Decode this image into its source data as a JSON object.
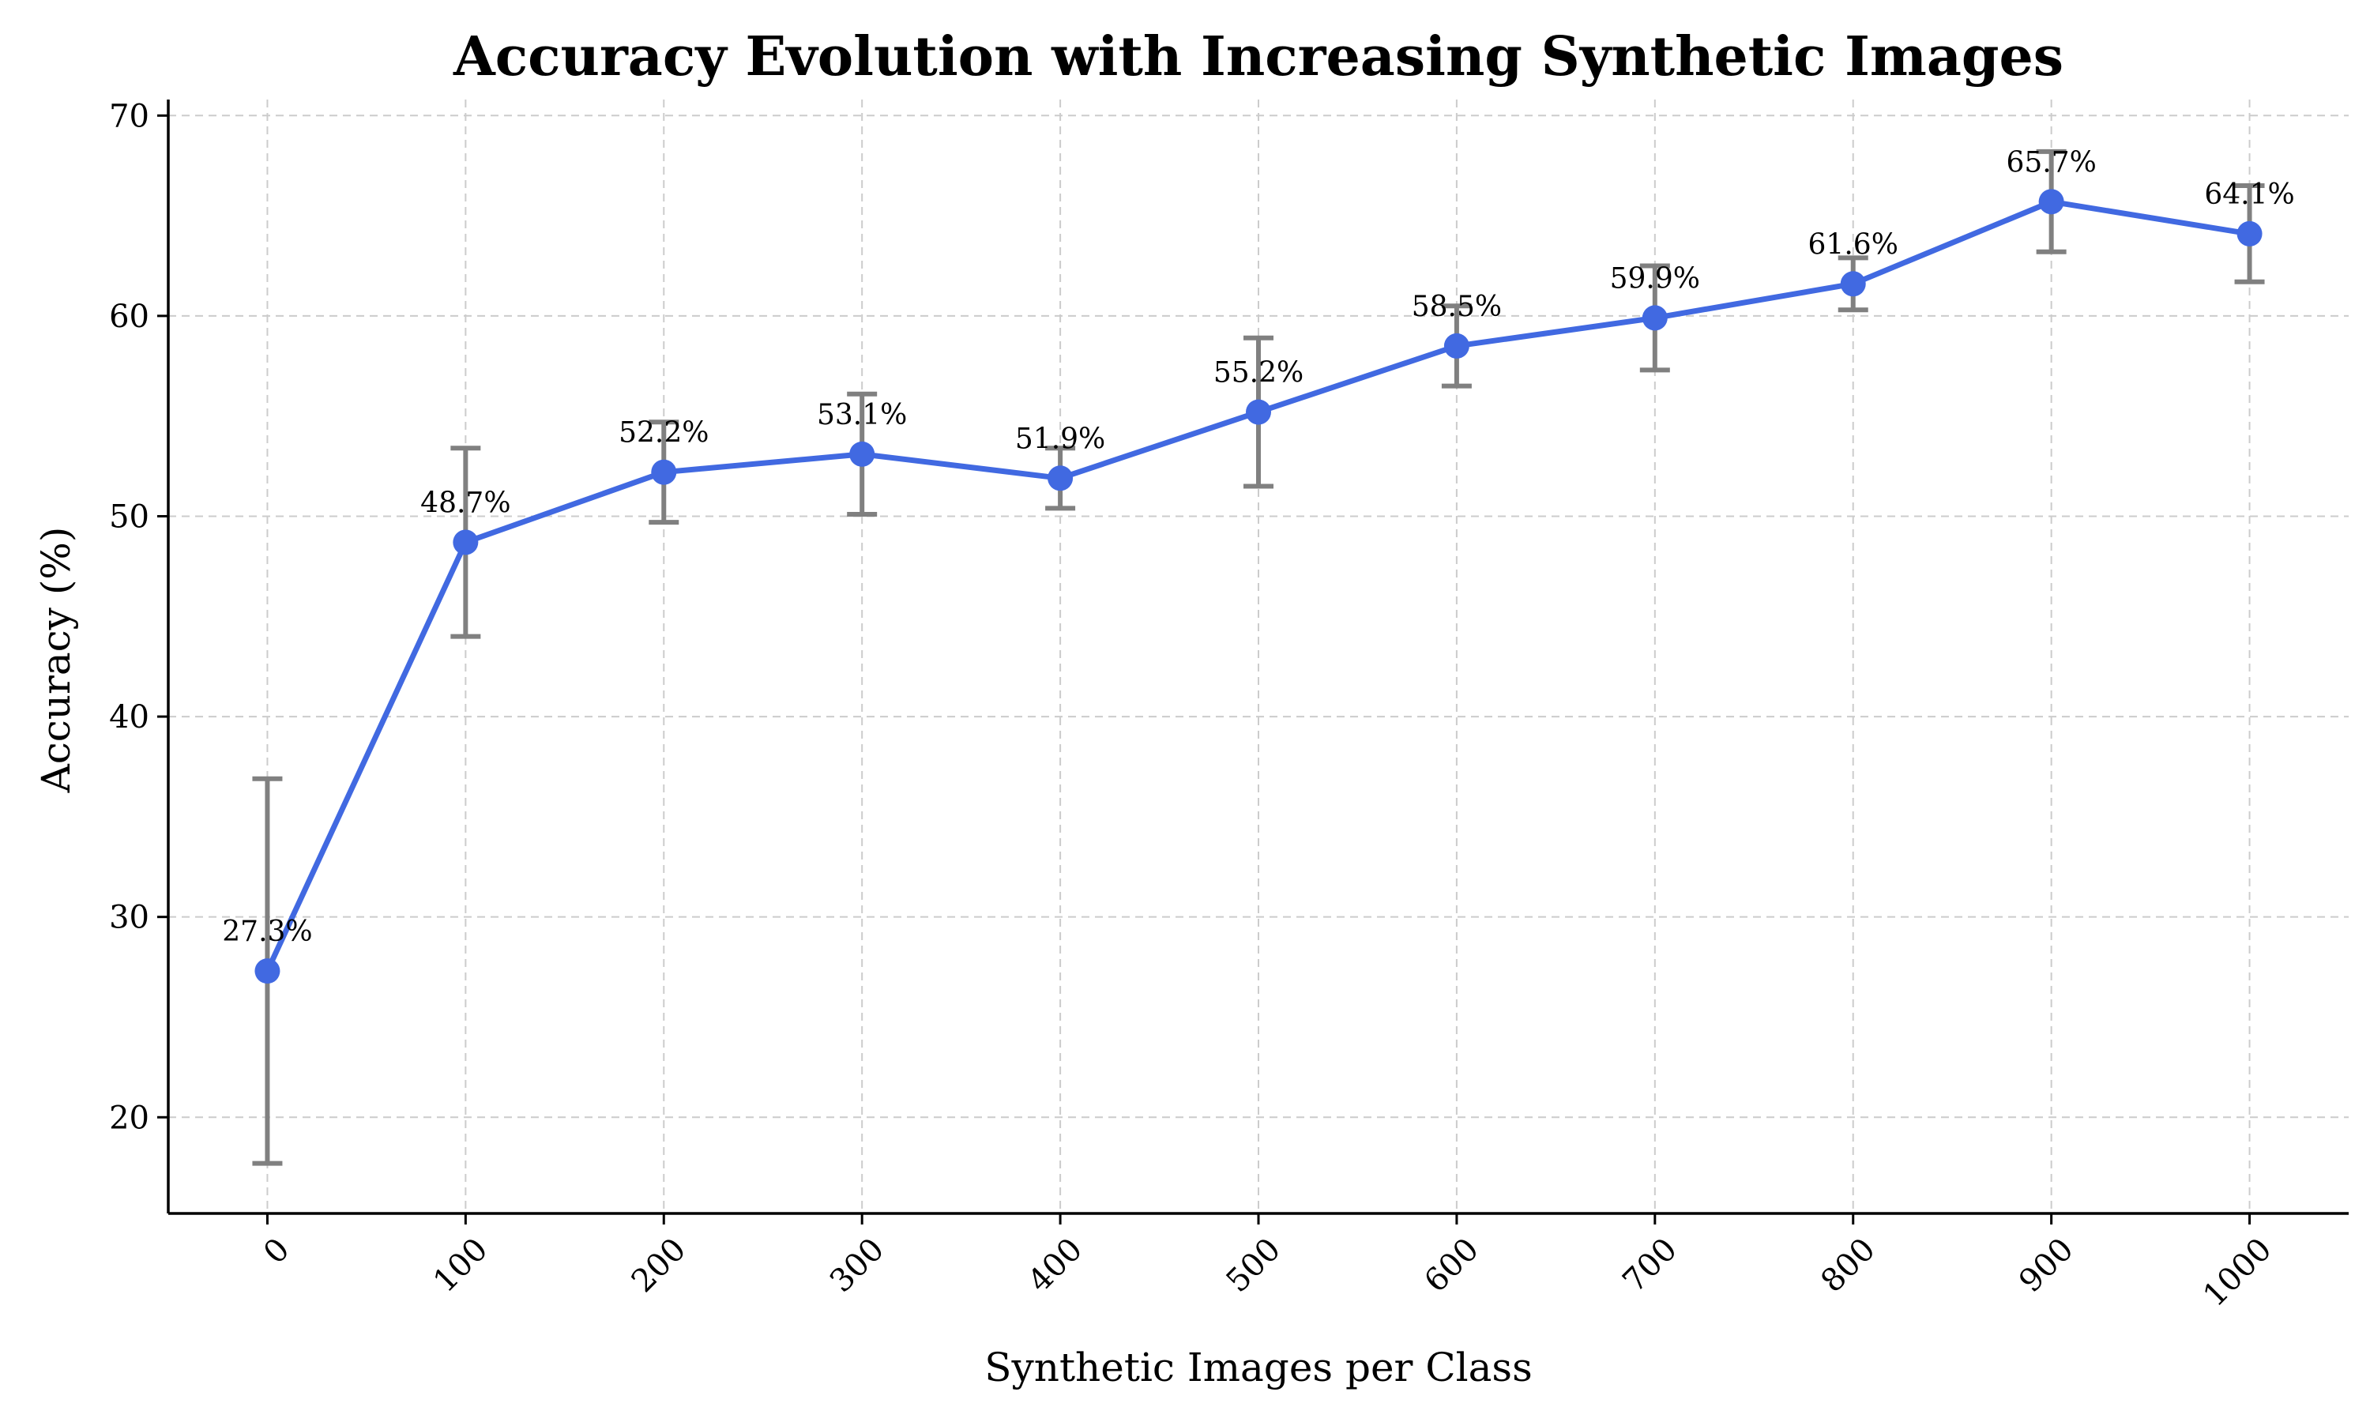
{
  "chart_data": {
    "type": "line",
    "title": "Accuracy Evolution with Increasing Synthetic Images",
    "xlabel": "Synthetic Images per Class",
    "ylabel": "Accuracy (%)",
    "xlim": [
      -50,
      1050
    ],
    "ylim": [
      15.2,
      70.8
    ],
    "xticks": [
      0,
      100,
      200,
      300,
      400,
      500,
      600,
      700,
      800,
      900,
      1000
    ],
    "yticks": [
      20,
      30,
      40,
      50,
      60,
      70
    ],
    "grid": true,
    "series": [
      {
        "color": "#4169e1",
        "x": [
          0,
          100,
          200,
          300,
          400,
          500,
          600,
          700,
          800,
          900,
          1000
        ],
        "y": [
          27.3,
          48.7,
          52.2,
          53.1,
          51.9,
          55.2,
          58.5,
          59.9,
          61.6,
          65.7,
          64.1
        ],
        "error_low": [
          17.7,
          44.0,
          49.7,
          50.1,
          50.4,
          51.5,
          56.5,
          57.3,
          60.3,
          63.2,
          61.7
        ],
        "error_high": [
          36.9,
          53.4,
          54.7,
          56.1,
          53.4,
          58.9,
          60.5,
          62.5,
          62.9,
          68.2,
          66.5
        ],
        "labels": [
          "27.3%",
          "48.7%",
          "52.2%",
          "53.1%",
          "51.9%",
          "55.2%",
          "58.5%",
          "59.9%",
          "61.6%",
          "65.7%",
          "64.1%"
        ]
      }
    ],
    "error_color": "#808080"
  }
}
